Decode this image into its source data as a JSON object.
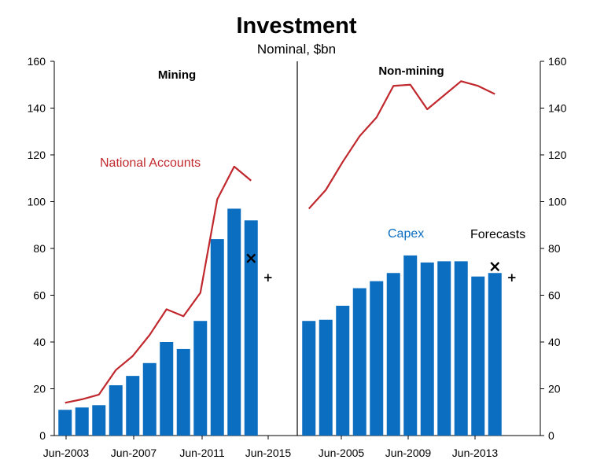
{
  "chart_data": {
    "type": "bar",
    "title": "Investment",
    "subtitle": "Nominal, $bn",
    "ylim": [
      0,
      160
    ],
    "yticks": [
      "0",
      "20",
      "40",
      "60",
      "80",
      "100",
      "120",
      "140",
      "160"
    ],
    "legend": {
      "capex": "Capex",
      "national_accounts": "National Accounts",
      "forecasts": "Forecasts"
    },
    "colors": {
      "capex": "#0c6ec0",
      "national_accounts": "#c0282d",
      "forecast_marker": "#000000"
    },
    "panels": [
      {
        "label": "Mining",
        "xtick_labels": [
          "Jun-2003",
          "Jun-2007",
          "Jun-2011",
          "Jun-2015"
        ],
        "categories": [
          "2003",
          "2004",
          "2005",
          "2006",
          "2007",
          "2008",
          "2009",
          "2010",
          "2011",
          "2012",
          "2013",
          "2014",
          "2015"
        ],
        "capex": [
          11,
          12,
          13,
          21.5,
          25.5,
          31,
          40,
          37,
          49,
          84,
          97,
          92,
          null
        ],
        "national_accounts": [
          14,
          15.5,
          17.5,
          28,
          34,
          43,
          54,
          51,
          61,
          101,
          115,
          109,
          null
        ],
        "forecasts": [
          {
            "x": "2014",
            "marker": "×",
            "y": 76
          },
          {
            "x": "2015",
            "marker": "+",
            "y": 67.5
          }
        ]
      },
      {
        "label": "Non-mining",
        "xtick_labels": [
          "Jun-2005",
          "Jun-2009",
          "Jun-2013"
        ],
        "categories": [
          "2003",
          "2004",
          "2005",
          "2006",
          "2007",
          "2008",
          "2009",
          "2010",
          "2011",
          "2012",
          "2013",
          "2014",
          "2015"
        ],
        "capex": [
          49,
          49.5,
          55.5,
          63,
          66,
          69.5,
          77,
          74,
          74.5,
          74.5,
          68,
          69.5,
          null
        ],
        "national_accounts": [
          97,
          105,
          117,
          128,
          136,
          149.5,
          150,
          139.5,
          145.5,
          151.5,
          149.5,
          146,
          null
        ],
        "forecasts": [
          {
            "x": "2014",
            "marker": "×",
            "y": 72.5
          },
          {
            "x": "2015",
            "marker": "+",
            "y": 67.5
          }
        ]
      }
    ]
  }
}
